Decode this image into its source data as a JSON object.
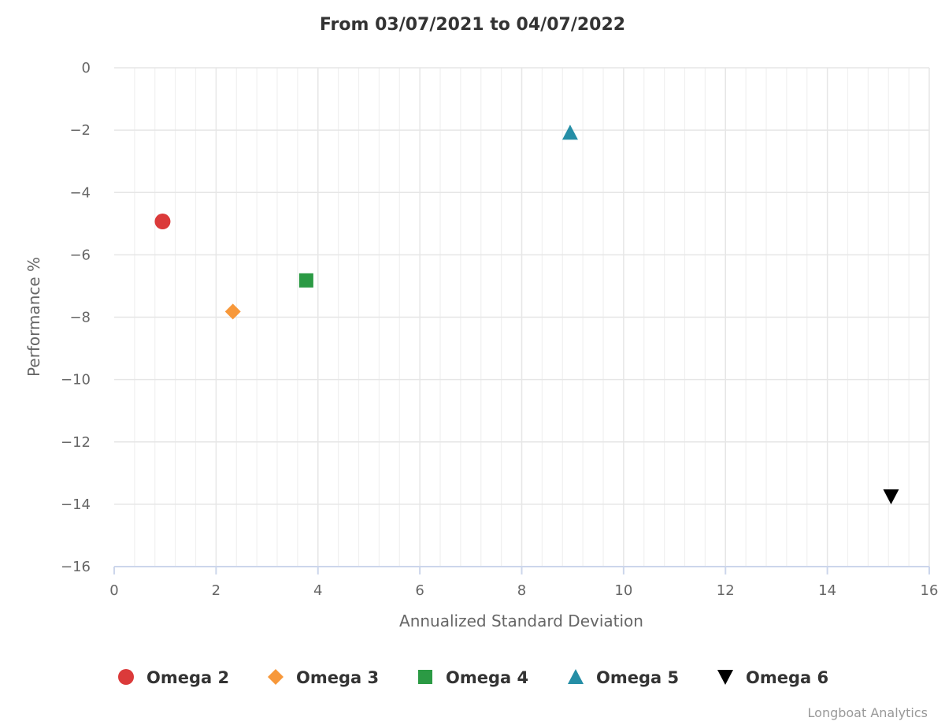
{
  "chart_data": {
    "type": "scatter",
    "title": "From 03/07/2021 to 04/07/2022",
    "xlabel": "Annualized Standard Deviation",
    "ylabel": "Performance %",
    "xlim": [
      0,
      16
    ],
    "ylim": [
      -16,
      0
    ],
    "x_ticks": [
      0,
      2,
      4,
      6,
      8,
      10,
      12,
      14,
      16
    ],
    "x_tick_labels": [
      "0",
      "2",
      "4",
      "6",
      "8",
      "10",
      "12",
      "14",
      "16"
    ],
    "y_ticks": [
      0,
      -2,
      -4,
      -6,
      -8,
      -10,
      -12,
      -14,
      -16
    ],
    "y_tick_labels": [
      "0",
      "−2",
      "−4",
      "−6",
      "−8",
      "−10",
      "−12",
      "−14",
      "−16"
    ],
    "grid": true,
    "legend_position": "bottom",
    "series": [
      {
        "name": "Omega 2",
        "marker": "circle",
        "color": "#db3a3a",
        "x": [
          0.95
        ],
        "y": [
          -4.93
        ]
      },
      {
        "name": "Omega 3",
        "marker": "diamond",
        "color": "#f7983a",
        "x": [
          2.33
        ],
        "y": [
          -7.82
        ]
      },
      {
        "name": "Omega 4",
        "marker": "square",
        "color": "#2b9a44",
        "x": [
          3.77
        ],
        "y": [
          -6.82
        ]
      },
      {
        "name": "Omega 5",
        "marker": "triangle-up",
        "color": "#258ea6",
        "x": [
          8.95
        ],
        "y": [
          -2.08
        ]
      },
      {
        "name": "Omega 6",
        "marker": "triangle-down",
        "color": "#000000",
        "x": [
          15.25
        ],
        "y": [
          -13.75
        ]
      }
    ]
  },
  "credits": "Longboat Analytics"
}
